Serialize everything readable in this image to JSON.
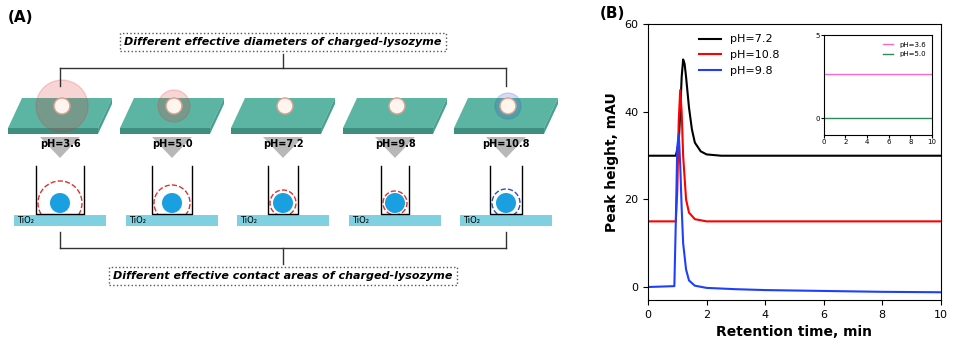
{
  "panel_a": {
    "label": "(A)",
    "top_caption": "Different effective diameters of charged-lysozyme",
    "bottom_caption": "Different effective contact areas of charged-lysozyme",
    "states": [
      {
        "ph_label": "pH=3.6",
        "substrate": "TiO₂"
      },
      {
        "ph_label": "pH=5.0",
        "substrate": "TiO₂"
      },
      {
        "ph_label": "pH=7.2",
        "substrate": "TiO₂"
      },
      {
        "ph_label": "pH=9.8",
        "substrate": "TiO₂"
      },
      {
        "ph_label": "pH=10.8",
        "substrate": "TiO₂"
      }
    ]
  },
  "chart_data": {
    "type": "line",
    "label": "(B)",
    "x_label": "Retention time, min",
    "y_label": "Peak height, mAU",
    "xlim": [
      0,
      10
    ],
    "xticks": [
      0,
      2,
      4,
      6,
      8,
      10
    ],
    "ylim": [
      -3,
      60
    ],
    "yticks": [
      0,
      20,
      40,
      60
    ],
    "legend": "upper left",
    "series": [
      {
        "name": "pH=7.2",
        "color": "#000000",
        "x": [
          0,
          0.95,
          1.05,
          1.1,
          1.15,
          1.2,
          1.25,
          1.3,
          1.4,
          1.5,
          1.6,
          1.8,
          2.0,
          2.5,
          4,
          6,
          8,
          10
        ],
        "values": [
          30,
          30,
          33,
          40,
          48,
          52,
          51,
          48,
          41,
          36,
          33,
          31,
          30.3,
          30,
          30,
          30,
          30,
          30
        ]
      },
      {
        "name": "pH=10.8",
        "color": "#ff0000",
        "x": [
          0,
          0.95,
          1.0,
          1.05,
          1.1,
          1.15,
          1.2,
          1.3,
          1.4,
          1.6,
          2.0,
          4,
          6,
          8,
          10
        ],
        "values": [
          15,
          15,
          22,
          38,
          45,
          40,
          30,
          20,
          17,
          15.5,
          15,
          15,
          15,
          15,
          15
        ]
      },
      {
        "name": "pH=9.8",
        "color": "#1f3fff",
        "x": [
          0,
          0.9,
          0.95,
          1.0,
          1.05,
          1.1,
          1.15,
          1.2,
          1.3,
          1.4,
          1.6,
          2.0,
          3,
          4,
          6,
          8,
          10
        ],
        "values": [
          0,
          0.2,
          15,
          32,
          35,
          28,
          18,
          10,
          4,
          1.5,
          0.3,
          -0.2,
          -0.5,
          -0.7,
          -0.9,
          -1.1,
          -1.2
        ]
      }
    ],
    "inset": {
      "type": "line",
      "xlim": [
        0,
        10
      ],
      "xticks": [
        0,
        2,
        4,
        6,
        8,
        10
      ],
      "ylim": [
        -1,
        5
      ],
      "yticks": [
        0,
        5
      ],
      "legend": "upper right",
      "series": [
        {
          "name": "pH=3.6",
          "color": "#ff66cc",
          "x": [
            0,
            10
          ],
          "values": [
            2.7,
            2.7
          ]
        },
        {
          "name": "pH=5.0",
          "color": "#2e8b57",
          "x": [
            0,
            10
          ],
          "values": [
            0,
            0
          ]
        }
      ]
    }
  }
}
